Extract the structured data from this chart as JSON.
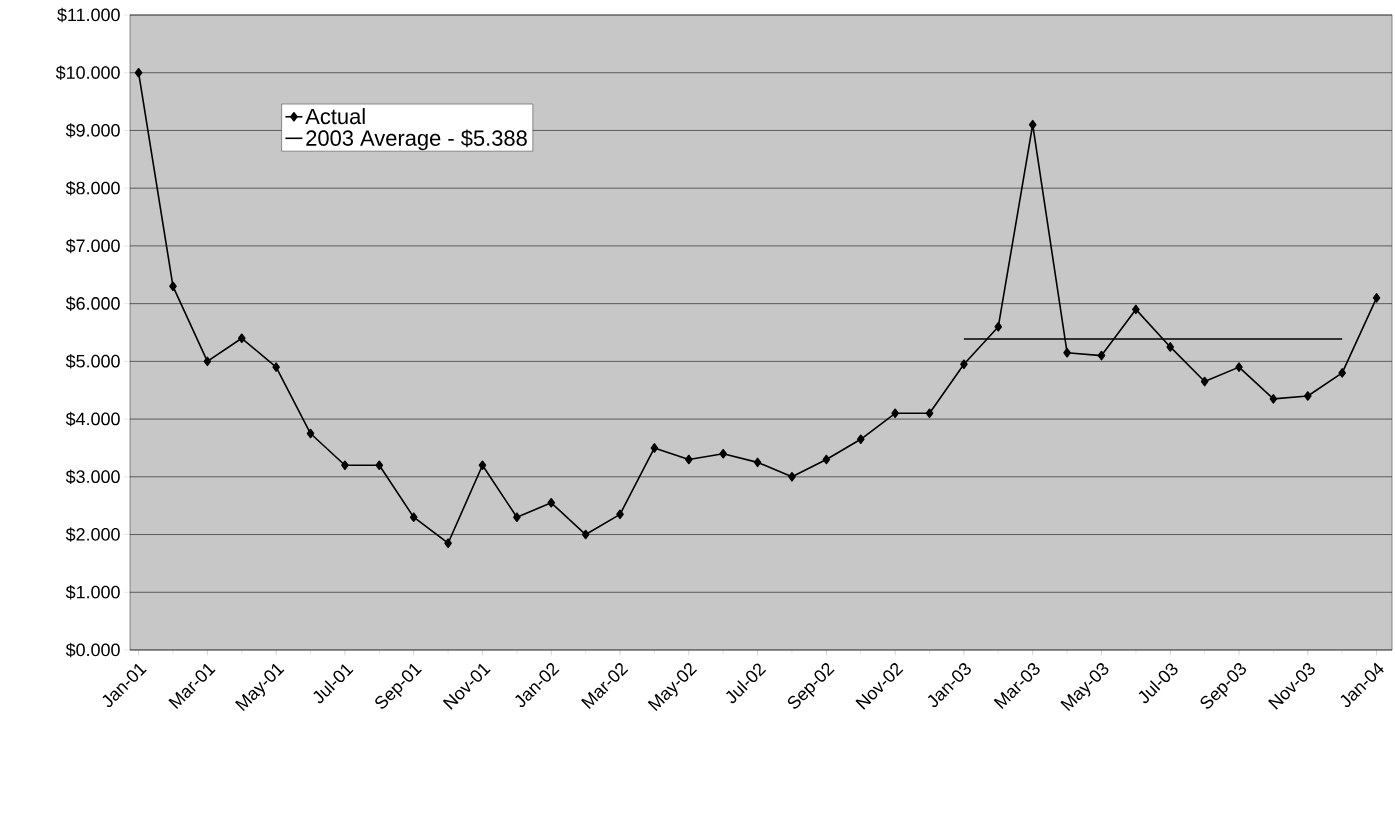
{
  "chart_data": {
    "type": "line",
    "categories": [
      "Jan-01",
      null,
      "Mar-01",
      null,
      "May-01",
      null,
      "Jul-01",
      null,
      "Sep-01",
      null,
      "Nov-01",
      null,
      "Jan-02",
      null,
      "Mar-02",
      null,
      "May-02",
      null,
      "Jul-02",
      null,
      "Sep-02",
      null,
      "Nov-02",
      null,
      "Jan-03",
      null,
      "Mar-03",
      null,
      "May-03",
      null,
      "Jul-03",
      null,
      "Sep-03",
      null,
      "Nov-03",
      null,
      "Jan-04"
    ],
    "series": [
      {
        "name": "Actual",
        "color": "#000000",
        "marker": "diamond",
        "values": [
          10.0,
          6.3,
          5.0,
          5.4,
          4.9,
          3.75,
          3.2,
          3.2,
          2.3,
          1.85,
          3.2,
          2.3,
          2.55,
          2.0,
          2.35,
          3.5,
          3.3,
          3.4,
          3.25,
          3.0,
          3.3,
          3.65,
          4.1,
          4.1,
          4.95,
          5.6,
          9.1,
          5.15,
          5.1,
          5.9,
          5.25,
          4.65,
          4.9,
          4.35,
          4.4,
          4.8,
          6.1
        ]
      },
      {
        "name": "2003 Average - $5.388",
        "color": "#000000",
        "marker": "none",
        "values": [
          null,
          null,
          null,
          null,
          null,
          null,
          null,
          null,
          null,
          null,
          null,
          null,
          null,
          null,
          null,
          null,
          null,
          null,
          null,
          null,
          null,
          null,
          null,
          null,
          5.388,
          5.388,
          5.388,
          5.388,
          5.388,
          5.388,
          5.388,
          5.388,
          5.388,
          5.388,
          5.388,
          5.388,
          null
        ]
      }
    ],
    "ylim": [
      0,
      11
    ],
    "yticks": [
      {
        "value": 0,
        "label": "$0.000"
      },
      {
        "value": 1,
        "label": "$1.000"
      },
      {
        "value": 2,
        "label": "$2.000"
      },
      {
        "value": 3,
        "label": "$3.000"
      },
      {
        "value": 4,
        "label": "$4.000"
      },
      {
        "value": 5,
        "label": "$5.000"
      },
      {
        "value": 6,
        "label": "$6.000"
      },
      {
        "value": 7,
        "label": "$7.000"
      },
      {
        "value": 8,
        "label": "$8.000"
      },
      {
        "value": 9,
        "label": "$9.000"
      },
      {
        "value": 10,
        "label": "$10.000"
      },
      {
        "value": 11,
        "label": "$11.000"
      }
    ],
    "grid": "y",
    "legend": "top left"
  }
}
